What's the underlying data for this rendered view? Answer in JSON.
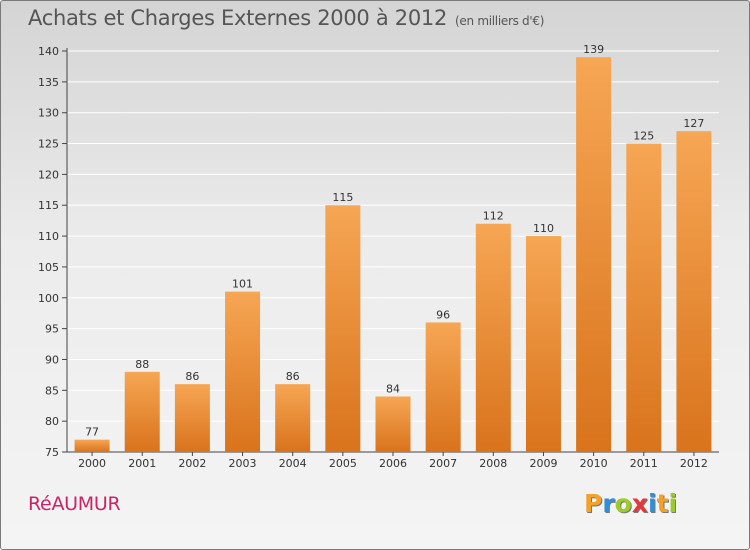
{
  "header": {
    "title": "Achats et Charges Externes 2000 à 2012",
    "unit": "(en milliers d'€)"
  },
  "footer": {
    "commune": "RéAUMUR",
    "logo_text": "Proxiti",
    "logo_letters": [
      {
        "ch": "P",
        "color": "#f2a12b"
      },
      {
        "ch": "r",
        "color": "#2f8fd8"
      },
      {
        "ch": "o",
        "color": "#9ccc2a"
      },
      {
        "ch": "x",
        "color": "#e23a3a"
      },
      {
        "ch": "i",
        "color": "#2f8fd8"
      },
      {
        "ch": "t",
        "color": "#f2a12b"
      },
      {
        "ch": "i",
        "color": "#9ccc2a"
      }
    ]
  },
  "colors": {
    "bar_light": "#f6a654",
    "bar_dark": "#d9731c",
    "grid": "#ffffff",
    "axis": "#444444"
  },
  "chart_data": {
    "type": "bar",
    "categories": [
      "2000",
      "2001",
      "2002",
      "2003",
      "2004",
      "2005",
      "2006",
      "2007",
      "2008",
      "2009",
      "2010",
      "2011",
      "2012"
    ],
    "values": [
      77,
      88,
      86,
      101,
      86,
      115,
      84,
      96,
      112,
      110,
      139,
      125,
      127
    ],
    "ylim": [
      75,
      140
    ],
    "yticks": [
      75,
      80,
      85,
      90,
      95,
      100,
      105,
      110,
      115,
      120,
      125,
      130,
      135,
      140
    ],
    "grid": true,
    "data_labels": true
  }
}
